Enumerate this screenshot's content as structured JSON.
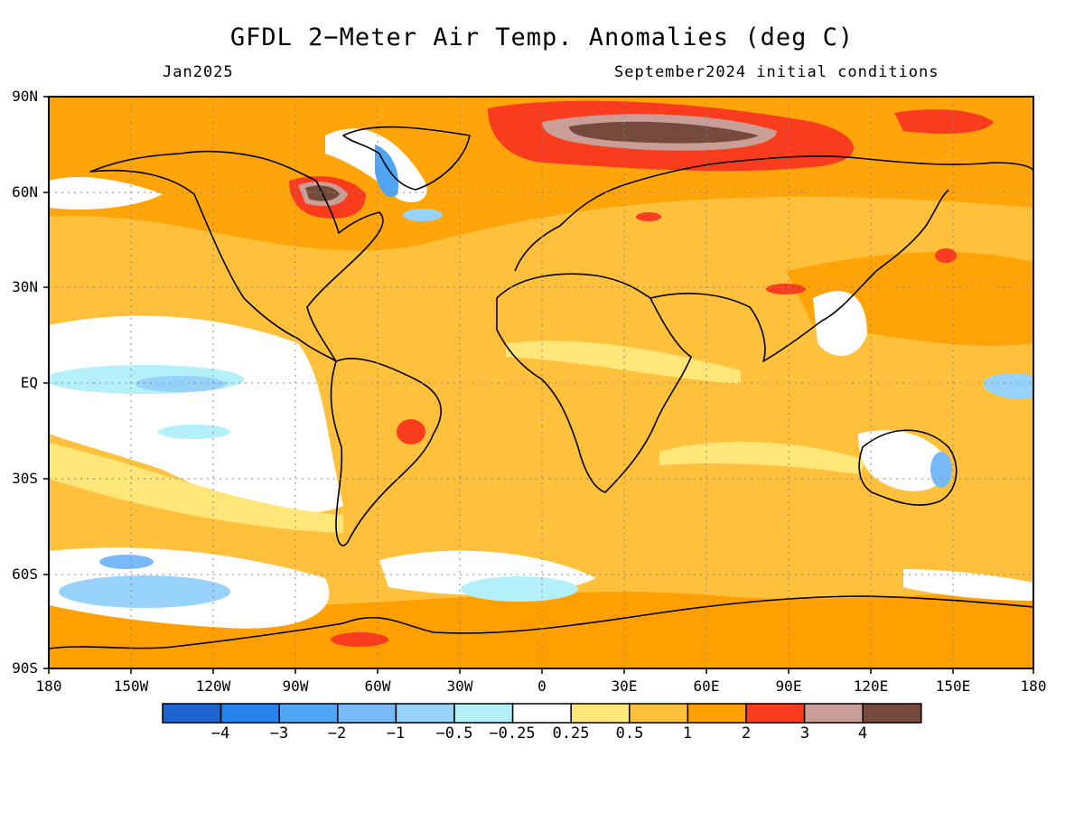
{
  "title": "GFDL 2−Meter Air Temp. Anomalies (deg C)",
  "valid_month": "Jan2025",
  "initial_conditions": "September2024 initial conditions",
  "y_axis_labels": [
    "90N",
    "60N",
    "30N",
    "EQ",
    "30S",
    "60S",
    "90S"
  ],
  "x_axis_labels": [
    "180",
    "150W",
    "120W",
    "90W",
    "60W",
    "30W",
    "0",
    "30E",
    "60E",
    "90E",
    "120E",
    "150E",
    "180"
  ],
  "colorbar": {
    "labels": [
      "−4",
      "−3",
      "−2",
      "−1",
      "−0.5",
      "−0.25",
      "0.25",
      "0.5",
      "1",
      "2",
      "3",
      "4"
    ],
    "colors": [
      "#1e64d0",
      "#2882ee",
      "#50a5f5",
      "#78b9fa",
      "#96d2fa",
      "#b4f0fa",
      "#ffffff",
      "#ffe678",
      "#ffc03c",
      "#ffa000",
      "#fa3c1e",
      "#c89e96",
      "#734a3c"
    ]
  }
}
